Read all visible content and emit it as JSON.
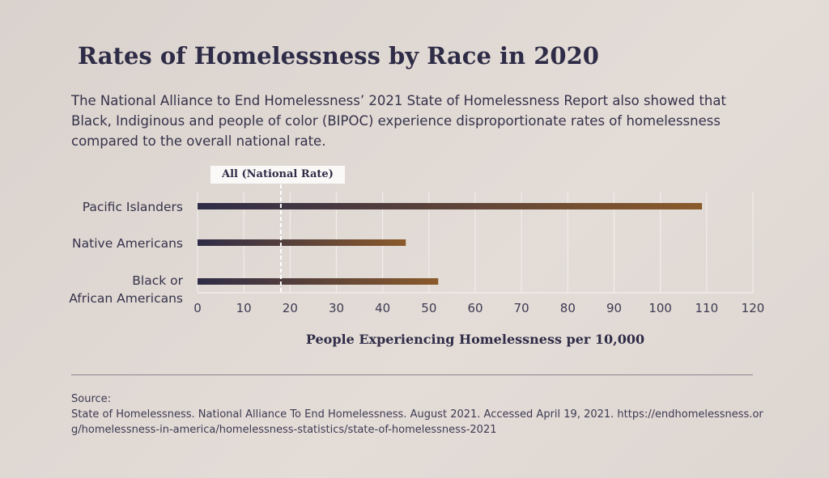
{
  "title": "Rates of Homelessness by Race in 2020",
  "description": "The National Alliance to End Homelessness’ 2021 State of Homelessness Report also showed that Black, Indiginous and people of color (BIPOC) experience disproportionate rates of homelessness compared to the overall national rate.",
  "source": {
    "label": "Source:",
    "text": "State of Homelessness. National Alliance To End Homelessness. August 2021. Accessed April 19, 2021. https://endhomelessness.org/homelessness-in-america/homelessness-statistics/state-of-homelessness-2021"
  },
  "chart_data": {
    "type": "bar",
    "orientation": "horizontal",
    "categories": [
      "Pacific Islanders",
      "Native Americans",
      "Black or African Americans"
    ],
    "values": [
      109,
      45,
      52
    ],
    "reference_line": {
      "label": "All (National Rate)",
      "value": 18
    },
    "xlabel": "People Experiencing Homelessness per 10,000",
    "xlim": [
      0,
      120
    ],
    "xticks": [
      0,
      10,
      20,
      30,
      40,
      50,
      60,
      70,
      80,
      90,
      100,
      110,
      120
    ],
    "grid": true,
    "colors": {
      "bar_start": "#2f2c47",
      "bar_end": "#8a5a2b",
      "grid": "#f2ede9"
    }
  }
}
